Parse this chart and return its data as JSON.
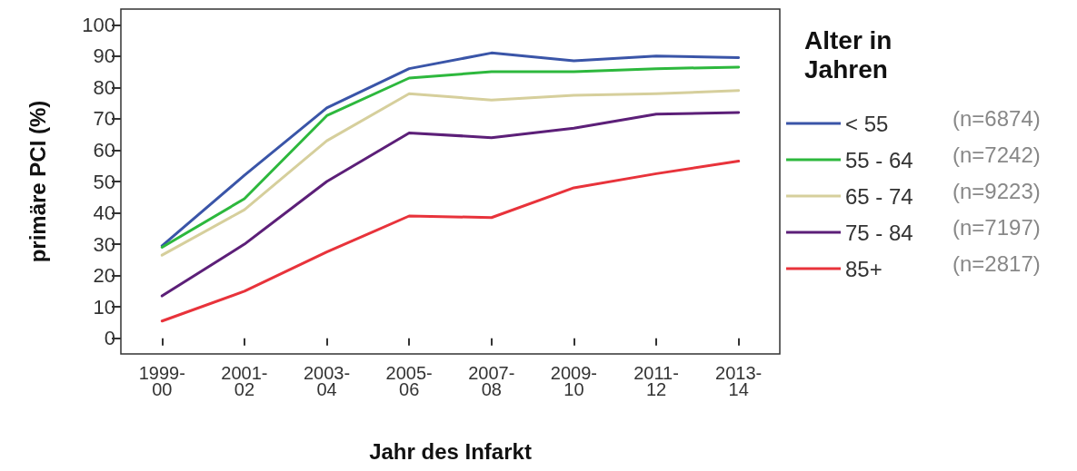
{
  "chart_data": {
    "type": "line",
    "xlabel": "Jahr des Infarkt",
    "ylabel": "primäre PCI (%)",
    "legend_title": "Alter in Jahren",
    "legend": "right",
    "categories": [
      "1999-00",
      "2001-02",
      "2003-04",
      "2005-06",
      "2007-08",
      "2009-10",
      "2011-12",
      "2013-14"
    ],
    "ylim": [
      -5,
      105
    ],
    "yticks": [
      0,
      10,
      20,
      30,
      40,
      50,
      60,
      70,
      80,
      90,
      100
    ],
    "grid": false,
    "marker": "none",
    "line_style": "solid",
    "series": [
      {
        "name": "< 55",
        "color": "#3a55a8",
        "values": [
          29.5,
          52,
          73.5,
          86,
          91,
          88.5,
          90,
          89.5
        ]
      },
      {
        "name": "55 - 64",
        "color": "#2db83d",
        "values": [
          29,
          44.5,
          71,
          83,
          85,
          85,
          86,
          86.5
        ]
      },
      {
        "name": "65 - 74",
        "color": "#d6cf9c",
        "values": [
          26.5,
          41,
          63,
          78,
          76,
          77.5,
          78,
          79
        ]
      },
      {
        "name": "75 - 84",
        "color": "#5c1f78",
        "values": [
          13.5,
          30,
          50,
          65.5,
          64,
          67,
          71.5,
          72
        ]
      },
      {
        "name": "85+",
        "color": "#e8333b",
        "values": [
          5.5,
          15,
          27.5,
          39,
          38.5,
          48,
          52.5,
          56.5
        ]
      }
    ],
    "annotations": [
      "(n=6874)",
      "(n=7242)",
      "(n=9223)",
      "(n=7197)",
      "(n=2817)"
    ]
  }
}
